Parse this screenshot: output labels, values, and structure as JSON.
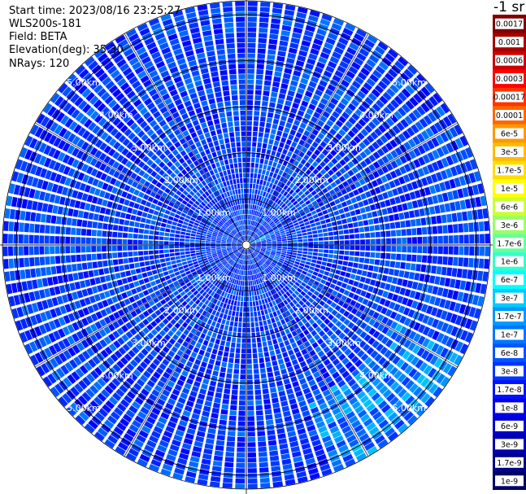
{
  "header": {
    "start_time": "Start time: 2023/08/16 23:25:27",
    "instrument": "WLS200s-181",
    "field": "Field: BETA",
    "elevation": "Elevation(deg): 35.30",
    "nrays": "NRays: 120"
  },
  "colorbar": {
    "unit_label": "-1 sr",
    "ticks": [
      "0.0017",
      "0.001",
      "0.0006",
      "0.0003",
      "0.00017",
      "0.0001",
      "6e-5",
      "3e-5",
      "1.7e-5",
      "1e-5",
      "6e-6",
      "3e-6",
      "1.7e-6",
      "1e-6",
      "6e-7",
      "3e-7",
      "1.7e-7",
      "1e-7",
      "6e-8",
      "3e-8",
      "1.7e-8",
      "1e-8",
      "6e-9",
      "3e-9",
      "1.7e-9",
      "1e-9"
    ],
    "colors": [
      "#800000",
      "#a80000",
      "#cc0000",
      "#ff0000",
      "#ff3300",
      "#ff6600",
      "#ff9900",
      "#ffbb00",
      "#ffdd00",
      "#ffff00",
      "#ccff33",
      "#99ff66",
      "#66ff99",
      "#33ffcc",
      "#00ffff",
      "#00ccff",
      "#0099ff",
      "#0077ff",
      "#0055ff",
      "#0033ff",
      "#0011ff",
      "#0000ee",
      "#0000cc",
      "#0000aa",
      "#000088",
      "#000066"
    ]
  },
  "chart_data": {
    "type": "heatmap",
    "projection": "polar PPI",
    "field": "BETA",
    "elevation_deg": 35.3,
    "n_rays": 120,
    "range_rings_km": [
      1,
      2,
      3,
      4,
      5
    ],
    "ring_labels": [
      "1.00km",
      "2.00km",
      "3.00km",
      "4.00km",
      "5.00km"
    ],
    "azimuth_spokes_deg": [
      0,
      30,
      60,
      90,
      120,
      150,
      180,
      210,
      240,
      270,
      300,
      330
    ],
    "color_scale": "log",
    "value_range": [
      1e-09,
      0.0017
    ],
    "typical_value": 1.7e-07,
    "features": [
      {
        "region": "near range east (about 0.3km)",
        "value": 1e-06
      },
      {
        "region": "far range southeast (about 4-5km)",
        "value": 1e-06
      }
    ]
  }
}
